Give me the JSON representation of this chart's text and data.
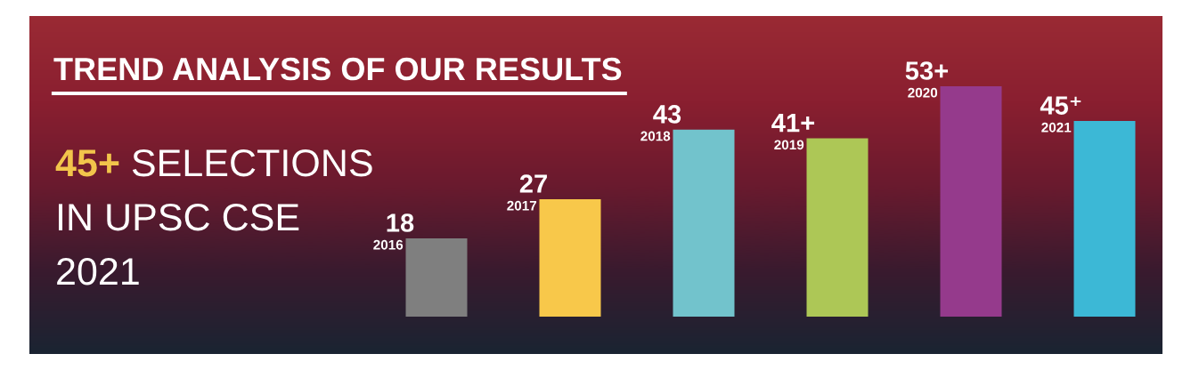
{
  "chart_data": {
    "type": "bar",
    "title": "TREND ANALYSIS OF OUR RESULTS",
    "subtitle": "45+ SELECTIONS\nIN UPSC CSE\n2021",
    "categories": [
      "2016",
      "2017",
      "2018",
      "2019",
      "2020",
      "2021"
    ],
    "values": [
      18,
      27,
      43,
      41,
      53,
      45
    ],
    "value_labels": [
      "18",
      "27",
      "43",
      "41+",
      "53+",
      "45⁺"
    ],
    "colors": [
      "#7f7f7f",
      "#f8c84a",
      "#72c3cc",
      "#adc756",
      "#953a8c",
      "#3cb8d6"
    ],
    "tick_labels": false
  }
}
